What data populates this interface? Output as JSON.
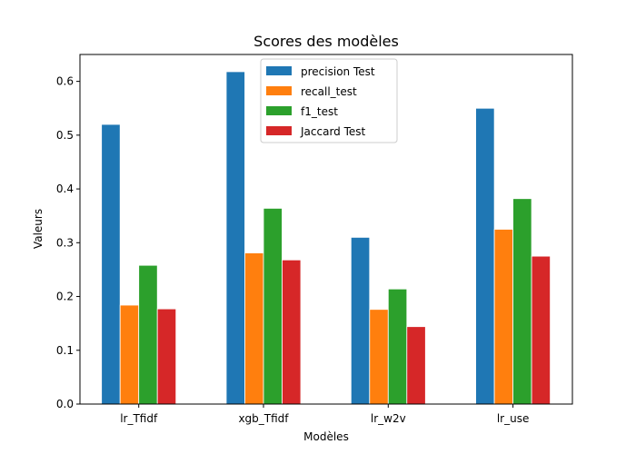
{
  "chart_data": {
    "type": "bar",
    "title": "Scores des modèles",
    "xlabel": "Modèles",
    "ylabel": "Valeurs",
    "categories": [
      "lr_Tfidf",
      "xgb_Tfidf",
      "lr_w2v",
      "lr_use"
    ],
    "series": [
      {
        "name": "precision Test",
        "color": "#1f77b4",
        "values": [
          0.52,
          0.618,
          0.31,
          0.55
        ]
      },
      {
        "name": "recall_test",
        "color": "#ff7f0e",
        "values": [
          0.184,
          0.281,
          0.176,
          0.325
        ]
      },
      {
        "name": "f1_test",
        "color": "#2ca02c",
        "values": [
          0.258,
          0.364,
          0.214,
          0.382
        ]
      },
      {
        "name": "Jaccard Test",
        "color": "#d62728",
        "values": [
          0.177,
          0.268,
          0.144,
          0.275
        ]
      }
    ],
    "ylim": [
      0,
      0.65
    ],
    "yticks": [
      "0.0",
      "0.1",
      "0.2",
      "0.3",
      "0.4",
      "0.5",
      "0.6"
    ],
    "grid": false,
    "legend_position": "top-center"
  }
}
